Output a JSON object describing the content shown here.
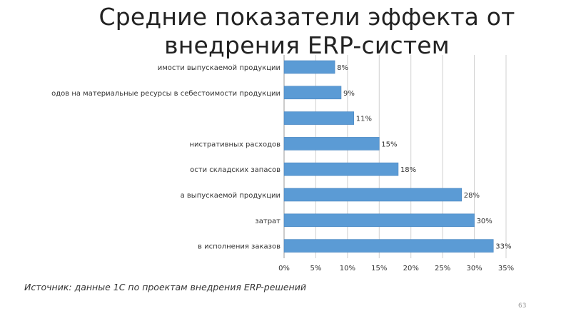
{
  "slide": {
    "title_line1": "Средние показатели эффекта от",
    "title_line2": "внедрения ERP-систем",
    "source": "Источник: данные 1С по проектам внедрения ERP-решений",
    "page_number": "63",
    "bar_color": "#5b9bd5"
  },
  "chart_data": {
    "type": "bar",
    "orientation": "horizontal",
    "categories": [
      "имости выпускаемой продукции",
      "одов на материальные ресурсы в себестоимости продукции",
      "",
      "нистративных расходов",
      "ости складских запасов",
      "а выпускаемой продукции",
      "затрат",
      "в исполнения заказов"
    ],
    "values": [
      8,
      9,
      11,
      15,
      18,
      28,
      30,
      33
    ],
    "value_labels": [
      "8%",
      "9%",
      "11%",
      "15%",
      "18%",
      "28%",
      "30%",
      "33%"
    ],
    "xlim": [
      0,
      35
    ],
    "xticks": [
      "0%",
      "5%",
      "10%",
      "15%",
      "20%",
      "25%",
      "30%",
      "35%"
    ],
    "grid": true,
    "legend": "none"
  }
}
